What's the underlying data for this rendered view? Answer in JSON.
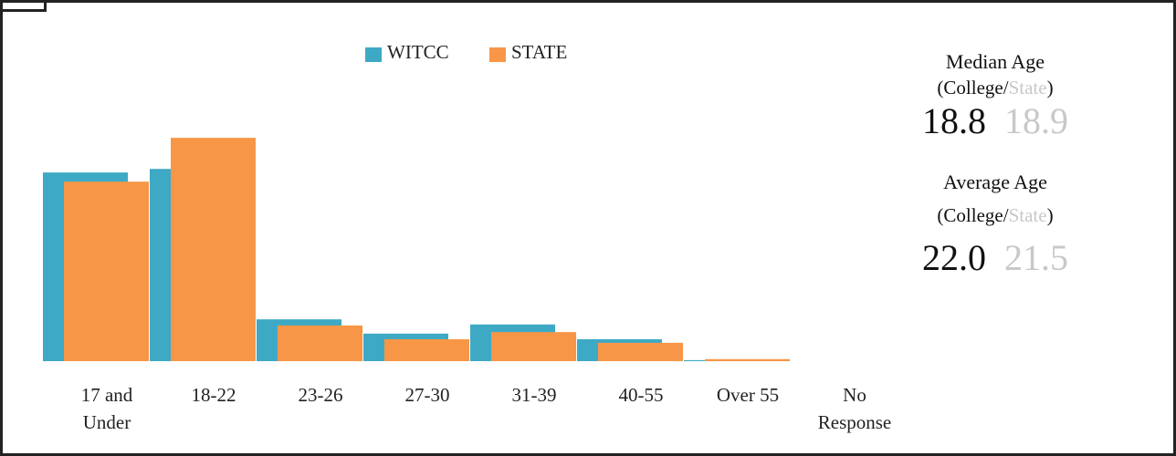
{
  "chart_data": {
    "type": "bar",
    "categories": [
      "17 and Under",
      "18-22",
      "23-26",
      "27-30",
      "31-39",
      "40-55",
      "Over 55",
      "No Response"
    ],
    "series": [
      {
        "name": "WITCC",
        "color": "#3ea9c5",
        "values": [
          37.0,
          37.7,
          8.2,
          5.4,
          7.2,
          4.3,
          0.2,
          0
        ]
      },
      {
        "name": "STATE",
        "color": "#f79646",
        "values": [
          35.2,
          43.8,
          7.0,
          4.3,
          5.7,
          3.6,
          0.4,
          0
        ]
      }
    ],
    "ylim": [
      0,
      44
    ]
  },
  "stats": [
    {
      "title": "Median Age",
      "subtitle": [
        "(College/",
        "State",
        ")"
      ],
      "college": "18.8",
      "state": "18.9"
    },
    {
      "title": "Average Age",
      "subtitle": [
        "(College/",
        "State",
        ")"
      ],
      "college": "22.0",
      "state": "21.5"
    }
  ]
}
